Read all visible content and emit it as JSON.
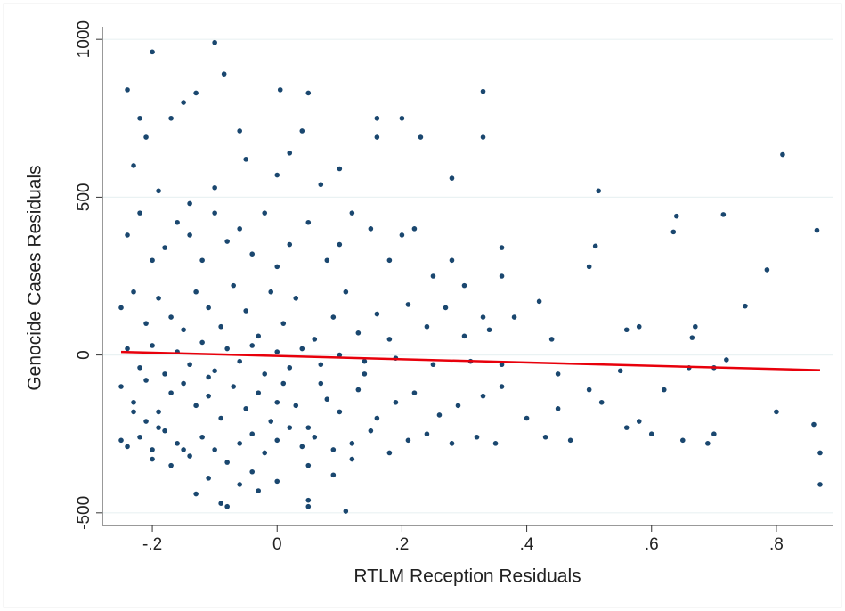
{
  "chart_data": {
    "type": "scatter",
    "xlabel": "RTLM Reception Residuals",
    "ylabel": "Genocide Cases Residuals",
    "xlim": [
      -0.28,
      0.89
    ],
    "ylim": [
      -540,
      1040
    ],
    "xticks": [
      {
        "value": -0.2,
        "label": "-.2"
      },
      0,
      {
        "value": 0.2,
        "label": ".2"
      },
      {
        "value": 0.4,
        "label": ".4"
      },
      {
        "value": 0.6,
        "label": ".6"
      },
      {
        "value": 0.8,
        "label": ".8"
      }
    ],
    "yticks": [
      -500,
      0,
      500,
      1000
    ],
    "grid": true,
    "color": "#1a476f",
    "x": [
      -0.24,
      -0.2,
      -0.1,
      -0.085,
      0.005,
      0.05,
      0.33,
      0.16,
      0.2,
      0.81,
      -0.22,
      -0.21,
      -0.15,
      -0.13,
      -0.06,
      0.04,
      0.16,
      0.23,
      0.33,
      -0.17,
      -0.23,
      -0.19,
      -0.14,
      -0.1,
      -0.05,
      0.0,
      0.02,
      0.07,
      0.1,
      0.28,
      -0.24,
      -0.22,
      -0.2,
      -0.18,
      -0.16,
      -0.14,
      -0.12,
      -0.1,
      -0.08,
      -0.06,
      -0.04,
      -0.02,
      0.0,
      0.02,
      0.05,
      0.08,
      0.1,
      0.12,
      0.15,
      0.18,
      0.2,
      0.22,
      0.25,
      0.28,
      0.3,
      0.36,
      0.36,
      0.5,
      0.51,
      0.515,
      0.635,
      0.64,
      0.715,
      0.785,
      0.865,
      0.75,
      0.42,
      0.38,
      0.33,
      0.27,
      -0.25,
      -0.23,
      -0.21,
      -0.19,
      -0.17,
      -0.15,
      -0.13,
      -0.11,
      -0.09,
      -0.07,
      -0.05,
      -0.03,
      -0.01,
      0.01,
      0.03,
      0.06,
      0.09,
      0.11,
      0.13,
      0.16,
      0.18,
      0.21,
      0.24,
      0.3,
      0.34,
      0.44,
      0.56,
      0.58,
      0.67,
      0.665,
      -0.24,
      -0.22,
      -0.2,
      -0.18,
      -0.16,
      -0.14,
      -0.12,
      -0.1,
      -0.08,
      -0.06,
      -0.04,
      -0.02,
      0.0,
      0.02,
      0.04,
      0.07,
      0.1,
      0.14,
      0.19,
      0.25,
      0.31,
      0.36,
      0.45,
      0.5,
      0.55,
      0.62,
      0.66,
      0.7,
      0.72,
      0.8,
      -0.25,
      -0.23,
      -0.21,
      -0.19,
      -0.17,
      -0.15,
      -0.13,
      -0.11,
      -0.09,
      -0.07,
      -0.05,
      -0.03,
      -0.01,
      0.01,
      0.03,
      0.05,
      0.08,
      0.1,
      0.13,
      0.16,
      0.19,
      0.22,
      0.26,
      0.29,
      0.33,
      0.36,
      0.4,
      0.45,
      0.52,
      0.58,
      -0.25,
      -0.24,
      -0.22,
      -0.2,
      -0.18,
      -0.16,
      -0.14,
      -0.12,
      -0.1,
      -0.08,
      -0.06,
      -0.04,
      -0.02,
      0.0,
      0.02,
      0.04,
      0.06,
      0.09,
      0.12,
      0.15,
      0.18,
      0.21,
      0.24,
      0.28,
      0.32,
      0.35,
      0.43,
      0.47,
      0.6,
      0.65,
      0.69,
      0.7,
      0.86,
      0.87,
      0.87,
      0.56,
      0.12,
      0.05,
      -0.04,
      -0.11,
      -0.13,
      -0.09,
      -0.08,
      -0.03,
      0.05,
      0.05,
      0.11,
      -0.06,
      0.0,
      0.09,
      -0.2,
      -0.17,
      -0.15,
      -0.19,
      -0.21,
      -0.23,
      0.0,
      -0.11,
      0.07,
      0.14
    ],
    "y": [
      840,
      960,
      990,
      890,
      840,
      830,
      835,
      750,
      750,
      635,
      750,
      690,
      800,
      830,
      710,
      710,
      690,
      690,
      690,
      750,
      600,
      520,
      480,
      530,
      620,
      570,
      640,
      540,
      590,
      560,
      380,
      450,
      300,
      340,
      420,
      380,
      300,
      450,
      360,
      400,
      320,
      450,
      280,
      350,
      420,
      300,
      350,
      450,
      400,
      300,
      380,
      400,
      250,
      300,
      220,
      340,
      250,
      280,
      345,
      520,
      390,
      440,
      445,
      270,
      395,
      155,
      170,
      120,
      120,
      150,
      150,
      200,
      100,
      180,
      120,
      80,
      200,
      150,
      90,
      220,
      140,
      60,
      200,
      100,
      180,
      50,
      120,
      200,
      70,
      130,
      50,
      160,
      90,
      60,
      80,
      50,
      80,
      90,
      90,
      55,
      20,
      -40,
      30,
      -60,
      10,
      -30,
      40,
      -50,
      20,
      -20,
      30,
      -60,
      10,
      -40,
      20,
      -30,
      0,
      -20,
      -10,
      -30,
      -20,
      -30,
      -60,
      -110,
      -50,
      -110,
      -40,
      -40,
      -15,
      -180,
      -100,
      -150,
      -80,
      -180,
      -120,
      -90,
      -160,
      -130,
      -200,
      -100,
      -170,
      -120,
      -210,
      -90,
      -160,
      -230,
      -140,
      -180,
      -110,
      -200,
      -150,
      -120,
      -190,
      -160,
      -130,
      -100,
      -200,
      -170,
      -150,
      -210,
      -270,
      -290,
      -260,
      -300,
      -240,
      -280,
      -320,
      -260,
      -300,
      -340,
      -280,
      -250,
      -310,
      -270,
      -230,
      -290,
      -260,
      -300,
      -280,
      -240,
      -310,
      -270,
      -250,
      -280,
      -260,
      -280,
      -260,
      -270,
      -250,
      -270,
      -280,
      -250,
      -220,
      -310,
      -410,
      -230,
      -330,
      -350,
      -370,
      -390,
      -440,
      -470,
      -480,
      -430,
      -460,
      -480,
      -495,
      -410,
      -400,
      -380,
      -330,
      -350,
      -300,
      -230,
      -210,
      -180,
      -150,
      -70,
      -90,
      -60
    ],
    "fit": {
      "x": [
        -0.25,
        0.87
      ],
      "y": [
        10,
        -48
      ],
      "color": "#e8000b"
    }
  }
}
